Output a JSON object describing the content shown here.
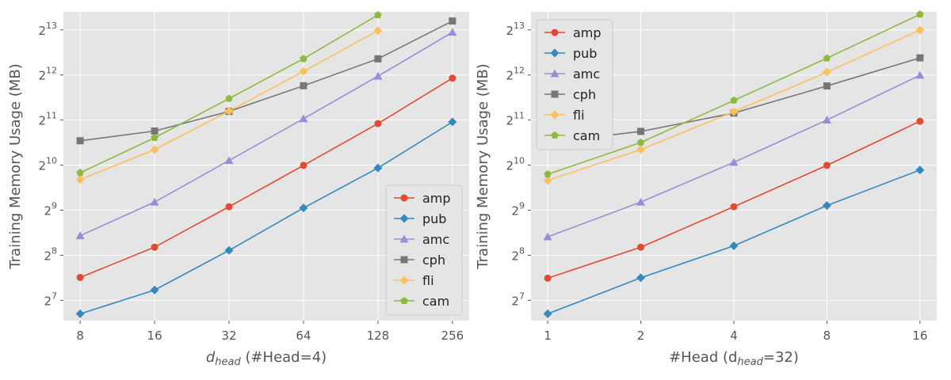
{
  "chart_data": [
    {
      "type": "line",
      "xscale": "log2",
      "yscale": "log2",
      "x": [
        8,
        16,
        32,
        64,
        128,
        256
      ],
      "xticks": [
        "8",
        "16",
        "32",
        "64",
        "128",
        "256"
      ],
      "xlabel_main": "d",
      "xlabel_sub": "head",
      "xlabel_rest": " (#Head=4)",
      "ylabel": "Training Memory Usage (MB)",
      "yticks": [
        7,
        8,
        9,
        10,
        11,
        12,
        13
      ],
      "ylim": [
        6.55,
        13.4
      ],
      "grid": true,
      "legend_position": "lower-right",
      "series": [
        {
          "name": "amp",
          "color": "#E24A33",
          "marker": "circle",
          "values": [
            182,
            290,
            540,
            1020,
            1940,
            3900
          ]
        },
        {
          "name": "pub",
          "color": "#348ABD",
          "marker": "diamond",
          "values": [
            104,
            150,
            276,
            530,
            980,
            1990
          ]
        },
        {
          "name": "amc",
          "color": "#988ED5",
          "marker": "triangle",
          "values": [
            346,
            580,
            1100,
            2090,
            4020,
            7900
          ]
        },
        {
          "name": "cph",
          "color": "#777777",
          "marker": "square",
          "values": [
            1490,
            1730,
            2340,
            3470,
            5250,
            9390
          ]
        },
        {
          "name": "fli",
          "color": "#FBC15E",
          "marker": "diamond",
          "values": [
            820,
            1300,
            2350,
            4330,
            8100,
            null
          ]
        },
        {
          "name": "cam",
          "color": "#8EBA42",
          "marker": "pentagon",
          "values": [
            910,
            1560,
            2850,
            5260,
            10300,
            null
          ]
        }
      ]
    },
    {
      "type": "line",
      "xscale": "log2",
      "yscale": "log2",
      "x": [
        1,
        2,
        4,
        8,
        16
      ],
      "xticks": [
        "1",
        "2",
        "4",
        "8",
        "16"
      ],
      "xlabel_main": "#Head (d",
      "xlabel_sub": "head",
      "xlabel_rest": "=32)",
      "ylabel": "Training Memory Usage (MB)",
      "yticks": [
        7,
        8,
        9,
        10,
        11,
        12,
        13
      ],
      "ylim": [
        6.55,
        13.4
      ],
      "grid": true,
      "legend_position": "upper-left",
      "series": [
        {
          "name": "amp",
          "color": "#E24A33",
          "marker": "circle",
          "values": [
            180,
            290,
            540,
            1020,
            2010
          ]
        },
        {
          "name": "pub",
          "color": "#348ABD",
          "marker": "diamond",
          "values": [
            104,
            181,
            296,
            550,
            950
          ]
        },
        {
          "name": "amc",
          "color": "#988ED5",
          "marker": "triangle",
          "values": [
            340,
            580,
            1070,
            2050,
            4080
          ]
        },
        {
          "name": "cph",
          "color": "#777777",
          "marker": "square",
          "values": [
            1450,
            1720,
            2280,
            3460,
            5330
          ]
        },
        {
          "name": "fli",
          "color": "#FBC15E",
          "marker": "diamond",
          "values": [
            810,
            1300,
            2330,
            4270,
            8180
          ]
        },
        {
          "name": "cam",
          "color": "#8EBA42",
          "marker": "pentagon",
          "values": [
            890,
            1450,
            2770,
            5300,
            10400
          ]
        }
      ]
    }
  ]
}
